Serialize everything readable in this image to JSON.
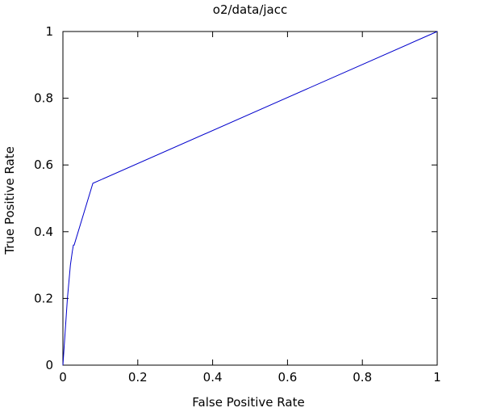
{
  "chart_data": {
    "type": "line",
    "title": "o2/data/jacc",
    "xlabel": "False Positive Rate",
    "ylabel": "True Positive Rate",
    "xlim": [
      0,
      1
    ],
    "ylim": [
      0,
      1
    ],
    "xticks": [
      0,
      0.2,
      0.4,
      0.6,
      0.8,
      1
    ],
    "yticks": [
      0,
      0.2,
      0.4,
      0.6,
      0.8,
      1
    ],
    "xtick_labels": [
      "0",
      "0.2",
      "0.4",
      "0.6",
      "0.8",
      "1"
    ],
    "ytick_labels": [
      "0",
      "0.2",
      "0.4",
      "0.6",
      "0.8",
      "1"
    ],
    "grid": false,
    "series": [
      {
        "color": "#0000cc",
        "x": [
          0,
          0.003,
          0.006,
          0.009,
          0.012,
          0.016,
          0.02,
          0.025,
          0.028,
          0.03,
          0.08,
          1.0
        ],
        "y": [
          0,
          0.05,
          0.1,
          0.15,
          0.2,
          0.25,
          0.3,
          0.34,
          0.36,
          0.36,
          0.545,
          1.0
        ]
      }
    ]
  }
}
